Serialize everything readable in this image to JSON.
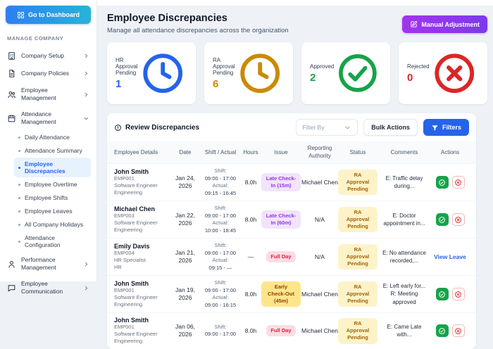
{
  "palette": {
    "accent_blue": "#2563eb",
    "pending_blue": "#2563eb",
    "pending_amber": "#ca8a04",
    "approved_green": "#16a34a",
    "rejected_red": "#dc2626",
    "dashboard_gradient": [
      "#2e7ff0",
      "#27b4d8"
    ],
    "manual_gradient": [
      "#a234ee",
      "#7c3aed"
    ],
    "active_item_bg": "#e8f2fe",
    "active_item_text": "#2563eb",
    "badge_purple_bg": "#f1e4fc",
    "badge_purple_text": "#9333ea",
    "badge_pink_bg": "#fcdce2",
    "badge_pink_text": "#e11d48",
    "badge_yellow_bg": "#fde68a",
    "badge_yellow_text": "#92400e",
    "status_bg": "#fdf3c8",
    "status_text": "#a16207",
    "approve_bg": "#16a34a",
    "reject_border": "#f5b5b5",
    "reject_text": "#dc2626",
    "link_blue": "#2563eb"
  },
  "sidebar": {
    "dashboard_button": "Go to Dashboard",
    "section_label": "MANAGE COMPANY",
    "items": [
      {
        "label": "Company Setup",
        "icon": "building",
        "chevron": "right"
      },
      {
        "label": "Company Policies",
        "icon": "document",
        "chevron": "right"
      },
      {
        "label": "Employee Management",
        "icon": "users",
        "chevron": "right"
      },
      {
        "label": "Attendance Management",
        "icon": "calendar",
        "chevron": "down",
        "children": [
          {
            "label": "Daily Attendance"
          },
          {
            "label": "Attendance Summary"
          },
          {
            "label": "Employee Discrepancies",
            "active": true
          },
          {
            "label": "Employee Overtime"
          },
          {
            "label": "Employee Shifts"
          },
          {
            "label": "Employee Leaves"
          },
          {
            "label": "All Company Holidays"
          },
          {
            "label": "Attendance Configuration"
          }
        ]
      },
      {
        "label": "Performance Management",
        "icon": "person",
        "chevron": "right"
      },
      {
        "label": "Employee Communication",
        "icon": "chat",
        "chevron": "right"
      }
    ]
  },
  "header": {
    "title": "Employee Discrepancies",
    "subtitle": "Manage all attendance discrepancies across the organization",
    "action_label": "Manual Adjustment"
  },
  "stats": [
    {
      "label": "HR Approval Pending",
      "value": "1",
      "color": "#2563eb",
      "icon": "clock"
    },
    {
      "label": "RA Approval Pending",
      "value": "6",
      "color": "#ca8a04",
      "icon": "clock"
    },
    {
      "label": "Approved",
      "value": "2",
      "color": "#16a34a",
      "icon": "check-circle"
    },
    {
      "label": "Rejected",
      "value": "0",
      "color": "#dc2626",
      "icon": "x-circle"
    }
  ],
  "table": {
    "title": "Review Discrepancies",
    "filter_placeholder": "Filter By",
    "bulk_label": "Bulk Actions",
    "filters_label": "Filters",
    "shift_label": "Shift:",
    "actual_label": "Actual:",
    "columns": [
      "Employee Details",
      "Date",
      "Shift / Actual",
      "Hours",
      "Issue",
      "Reporting Authority",
      "Status",
      "Comments",
      "Actions"
    ],
    "rows": [
      {
        "name": "John Smith",
        "id": "EMP001",
        "role": "Software Engineer",
        "dept": "Engineering",
        "date": "Jan 24, 2026",
        "shift": "09:00 - 17:00",
        "actual": "09:15 - 16:45",
        "hours": "8.0h",
        "issue": {
          "text": "Late Check-In (15m)",
          "color": "purple"
        },
        "authority": "Michael Chen",
        "status": "RA Approval Pending",
        "comments": [
          "E: Traffic delay during..."
        ],
        "actions": {
          "type": "buttons"
        }
      },
      {
        "name": "Michael Chen",
        "id": "EMP003",
        "role": "Software Engineer",
        "dept": "Engineering",
        "date": "Jan 22, 2026",
        "shift": "09:00 - 17:00",
        "actual": "10:00 - 18:45",
        "hours": "8.0h",
        "issue": {
          "text": "Late Check-In (60m)",
          "color": "purple"
        },
        "authority": "N/A",
        "status": "RA Approval Pending",
        "comments": [
          "E: Doctor appointment in..."
        ],
        "actions": {
          "type": "buttons"
        }
      },
      {
        "name": "Emily Davis",
        "id": "EMP004",
        "role": "HR Specialist",
        "dept": "HR",
        "date": "Jan 21, 2026",
        "shift": "09:00 - 17:00",
        "actual": "09:15 - —",
        "hours": "—",
        "issue": {
          "text": "Full Day",
          "color": "pink"
        },
        "authority": "N/A",
        "status": "RA Approval Pending",
        "comments": [
          "E: No attendance recorded,..."
        ],
        "actions": {
          "type": "link",
          "label": "View Leave"
        }
      },
      {
        "name": "John Smith",
        "id": "EMP001",
        "role": "Software Engineer",
        "dept": "Engineering",
        "date": "Jan 19, 2026",
        "shift": "09:00 - 17:00",
        "actual": "09:00 - 16:15",
        "hours": "8.0h",
        "issue": {
          "text": "Early Check-Out (45m)",
          "color": "yellow"
        },
        "authority": "Michael Chen",
        "status": "RA Approval Pending",
        "comments": [
          "E: Left early for...",
          "R: Meeting approved"
        ],
        "actions": {
          "type": "buttons"
        }
      },
      {
        "name": "John Smith",
        "id": "EMP001",
        "role": "Software Engineer",
        "dept": "Engineering",
        "date": "Jan 06, 2026",
        "shift": "09:00 - 17:00",
        "actual": "",
        "hours": "8.0h",
        "issue": {
          "text": "Full Day",
          "color": "pink"
        },
        "authority": "Michael Chen",
        "status": "RA Approval Pending",
        "comments": [
          "E: Came Late with..."
        ],
        "actions": {
          "type": "buttons"
        }
      }
    ]
  }
}
